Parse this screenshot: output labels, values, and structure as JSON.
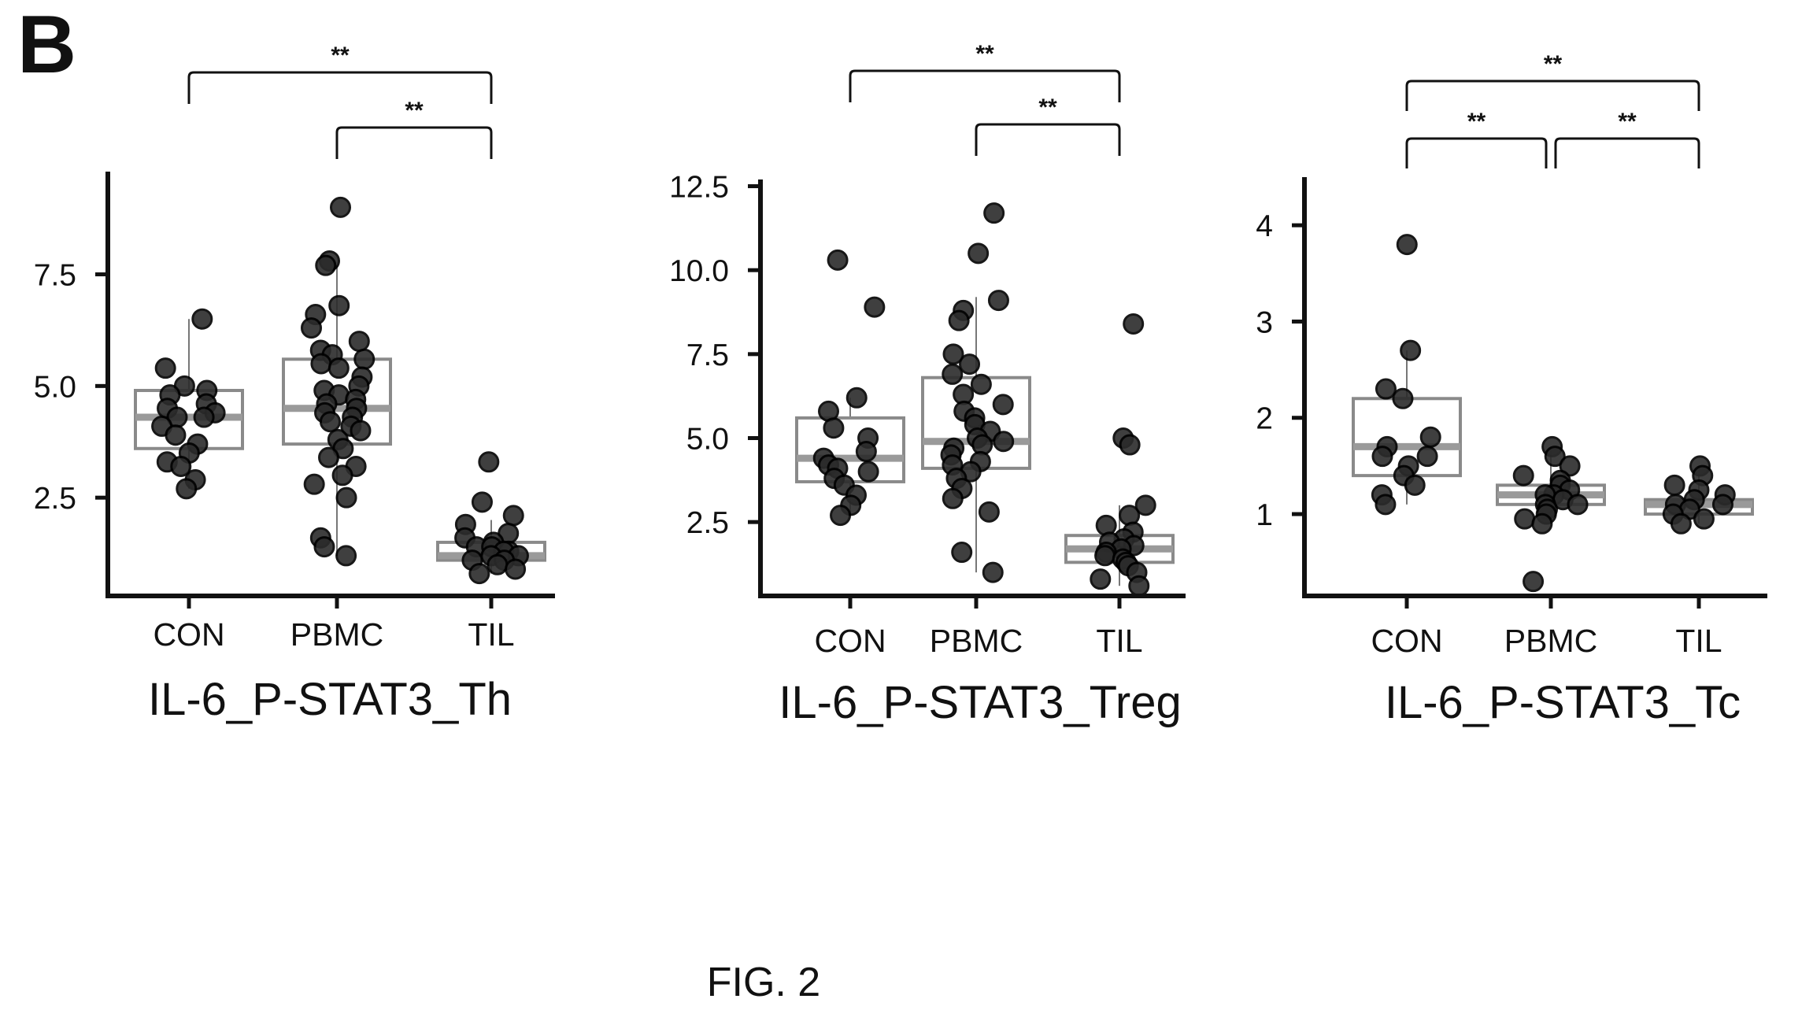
{
  "panel_label": "B",
  "figure_caption": "FIG. 2",
  "chart_data": [
    {
      "type": "box",
      "title": "IL-6_P-STAT3_Th",
      "xlabel": "",
      "ylabel": "",
      "categories": [
        "CON",
        "PBMC",
        "TIL"
      ],
      "ylim": [
        0.3,
        9.8
      ],
      "yticks": [
        2.5,
        5.0,
        7.5
      ],
      "ytick_labels": [
        "2.5",
        "5.0",
        "7.5"
      ],
      "grid": false,
      "boxes": [
        {
          "category": "CON",
          "q1": 3.6,
          "median": 4.3,
          "q3": 4.9,
          "whisker_low": 2.7,
          "whisker_high": 6.5
        },
        {
          "category": "PBMC",
          "q1": 3.7,
          "median": 4.5,
          "q3": 5.6,
          "whisker_low": 1.2,
          "whisker_high": 7.7
        },
        {
          "category": "TIL",
          "q1": 1.1,
          "median": 1.2,
          "q3": 1.5,
          "whisker_low": 0.8,
          "whisker_high": 2.0
        }
      ],
      "points": [
        {
          "category": "CON",
          "values": [
            6.5,
            5.4,
            5.0,
            4.9,
            4.8,
            4.6,
            4.5,
            4.4,
            4.3,
            4.3,
            4.1,
            3.9,
            3.7,
            3.5,
            3.3,
            3.2,
            2.9,
            2.7
          ]
        },
        {
          "category": "PBMC",
          "values": [
            9.0,
            7.8,
            7.7,
            6.8,
            6.6,
            6.3,
            6.0,
            5.8,
            5.7,
            5.6,
            5.5,
            5.4,
            5.2,
            5.0,
            4.9,
            4.8,
            4.7,
            4.6,
            4.5,
            4.4,
            4.3,
            4.2,
            4.1,
            4.0,
            3.8,
            3.6,
            3.4,
            3.2,
            3.0,
            2.8,
            2.5,
            1.6,
            1.4,
            1.2
          ]
        },
        {
          "category": "TIL",
          "values": [
            3.3,
            2.4,
            2.1,
            1.9,
            1.7,
            1.6,
            1.5,
            1.4,
            1.4,
            1.3,
            1.3,
            1.2,
            1.2,
            1.1,
            1.1,
            1.0,
            0.9,
            0.8
          ]
        }
      ],
      "significance": [
        {
          "from": "CON",
          "to": "TIL",
          "label": "**"
        },
        {
          "from": "PBMC",
          "to": "TIL",
          "label": "**"
        }
      ]
    },
    {
      "type": "box",
      "title": "IL-6_P-STAT3_Treg",
      "xlabel": "",
      "ylabel": "",
      "categories": [
        "CON",
        "PBMC",
        "TIL"
      ],
      "ylim": [
        0.3,
        12.7
      ],
      "yticks": [
        2.5,
        5.0,
        7.5,
        10.0,
        12.5
      ],
      "ytick_labels": [
        "2.5",
        "5.0",
        "7.5",
        "10.0",
        "12.5"
      ],
      "grid": false,
      "boxes": [
        {
          "category": "CON",
          "q1": 3.7,
          "median": 4.4,
          "q3": 5.6,
          "whisker_low": 2.7,
          "whisker_high": 6.2
        },
        {
          "category": "PBMC",
          "q1": 4.1,
          "median": 4.9,
          "q3": 6.8,
          "whisker_low": 1.0,
          "whisker_high": 9.2
        },
        {
          "category": "TIL",
          "q1": 1.3,
          "median": 1.7,
          "q3": 2.1,
          "whisker_low": 0.6,
          "whisker_high": 3.0
        }
      ],
      "points": [
        {
          "category": "CON",
          "values": [
            10.3,
            8.9,
            6.2,
            5.8,
            5.3,
            5.0,
            4.6,
            4.4,
            4.2,
            4.1,
            4.0,
            3.8,
            3.6,
            3.3,
            3.0,
            2.7
          ]
        },
        {
          "category": "PBMC",
          "values": [
            11.7,
            10.5,
            9.1,
            8.8,
            8.5,
            7.5,
            7.2,
            6.9,
            6.6,
            6.3,
            6.0,
            5.8,
            5.6,
            5.4,
            5.2,
            5.0,
            4.9,
            4.8,
            4.7,
            4.5,
            4.3,
            4.2,
            4.0,
            3.8,
            3.5,
            3.2,
            2.8,
            1.6,
            1.0
          ]
        },
        {
          "category": "TIL",
          "values": [
            8.4,
            5.0,
            4.8,
            3.0,
            2.7,
            2.4,
            2.2,
            2.0,
            1.9,
            1.8,
            1.7,
            1.6,
            1.5,
            1.4,
            1.3,
            1.2,
            1.0,
            0.8,
            0.6
          ]
        }
      ],
      "significance": [
        {
          "from": "CON",
          "to": "TIL",
          "label": "**"
        },
        {
          "from": "PBMC",
          "to": "TIL",
          "label": "**"
        }
      ]
    },
    {
      "type": "box",
      "title": "IL-6_P-STAT3_Tc",
      "xlabel": "",
      "ylabel": "",
      "categories": [
        "CON",
        "PBMC",
        "TIL"
      ],
      "ylim": [
        0.15,
        4.5
      ],
      "yticks": [
        1,
        2,
        3,
        4
      ],
      "ytick_labels": [
        "1",
        "2",
        "3",
        "4"
      ],
      "grid": false,
      "boxes": [
        {
          "category": "CON",
          "q1": 1.4,
          "median": 1.7,
          "q3": 2.2,
          "whisker_low": 1.1,
          "whisker_high": 2.7
        },
        {
          "category": "PBMC",
          "q1": 1.1,
          "median": 1.2,
          "q3": 1.3,
          "whisker_low": 0.9,
          "whisker_high": 1.7
        },
        {
          "category": "TIL",
          "q1": 1.0,
          "median": 1.1,
          "q3": 1.15,
          "whisker_low": 0.9,
          "whisker_high": 1.5
        }
      ],
      "points": [
        {
          "category": "CON",
          "values": [
            3.8,
            2.7,
            2.3,
            2.2,
            1.8,
            1.7,
            1.6,
            1.6,
            1.5,
            1.4,
            1.3,
            1.2,
            1.1
          ]
        },
        {
          "category": "PBMC",
          "values": [
            1.7,
            1.6,
            1.5,
            1.4,
            1.35,
            1.3,
            1.25,
            1.2,
            1.2,
            1.15,
            1.1,
            1.1,
            1.05,
            1.0,
            0.95,
            0.9,
            0.3
          ]
        },
        {
          "category": "TIL",
          "values": [
            1.5,
            1.4,
            1.3,
            1.25,
            1.2,
            1.15,
            1.1,
            1.1,
            1.05,
            1.0,
            0.95,
            0.9
          ]
        }
      ],
      "significance": [
        {
          "from": "CON",
          "to": "TIL",
          "label": "**"
        },
        {
          "from": "CON",
          "to": "PBMC",
          "label": "**"
        },
        {
          "from": "PBMC",
          "to": "TIL",
          "label": "**"
        }
      ]
    }
  ]
}
